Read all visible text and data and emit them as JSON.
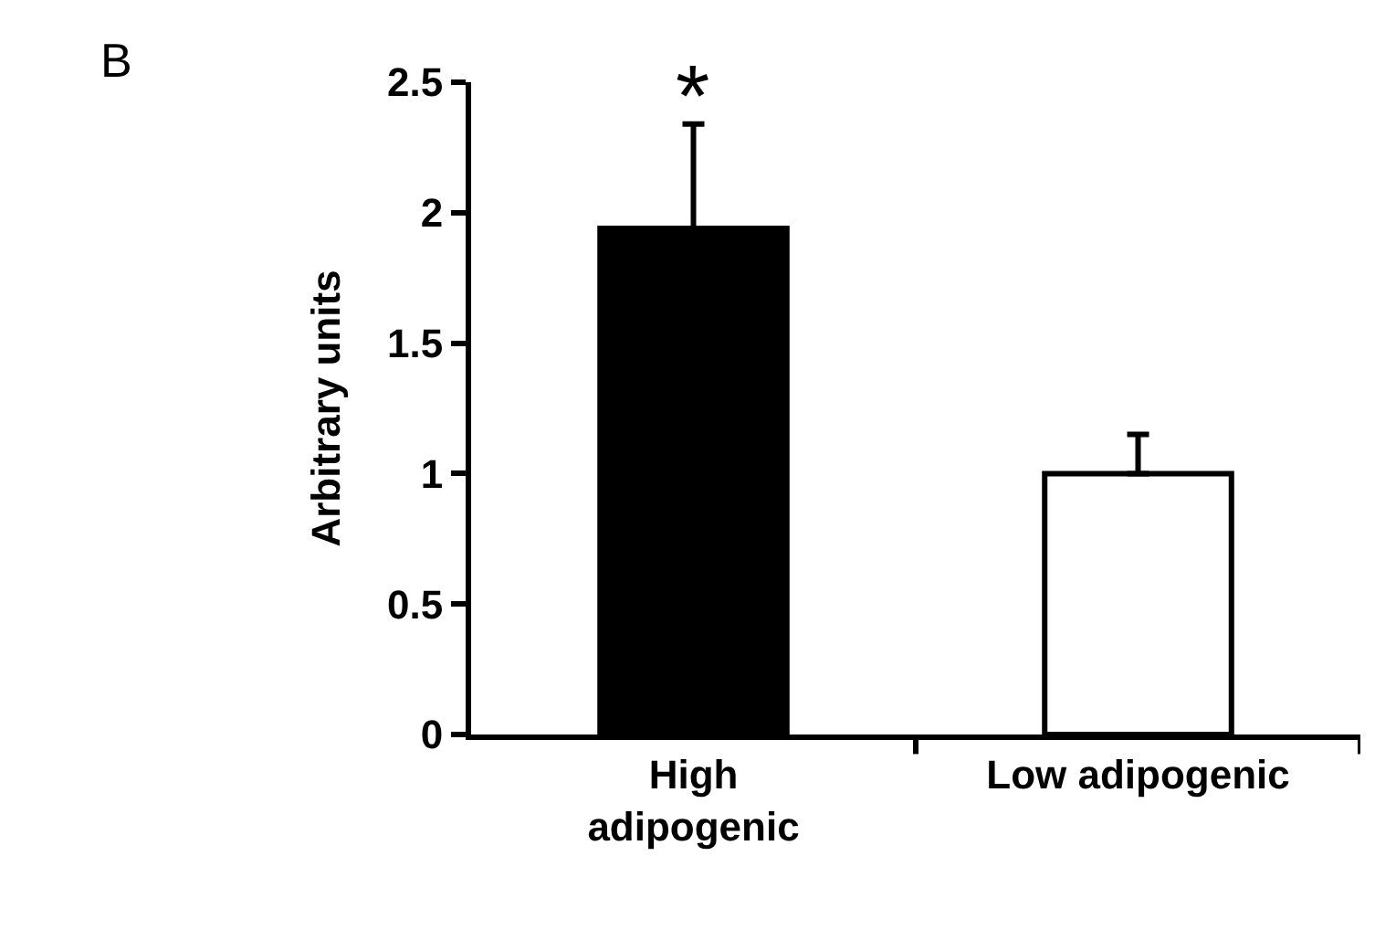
{
  "chart_data": {
    "type": "bar",
    "ylabel": "Arbitrary units",
    "categories": [
      "High\nadipogenic",
      "Low adipogenic"
    ],
    "values": [
      1.94,
      1.0
    ],
    "colors": [
      "#000000",
      "#ffffff"
    ],
    "errors": [
      [
        1.94,
        2.34
      ],
      [
        1.0,
        1.15
      ]
    ],
    "ylim": [
      0,
      2.5
    ],
    "yticks": [
      0,
      0.5,
      1,
      1.5,
      2,
      2.5
    ],
    "grid": false,
    "annotations": [
      {
        "text": "*",
        "x": "High\nadipogenic",
        "y": 2.34
      },
      "B"
    ]
  }
}
